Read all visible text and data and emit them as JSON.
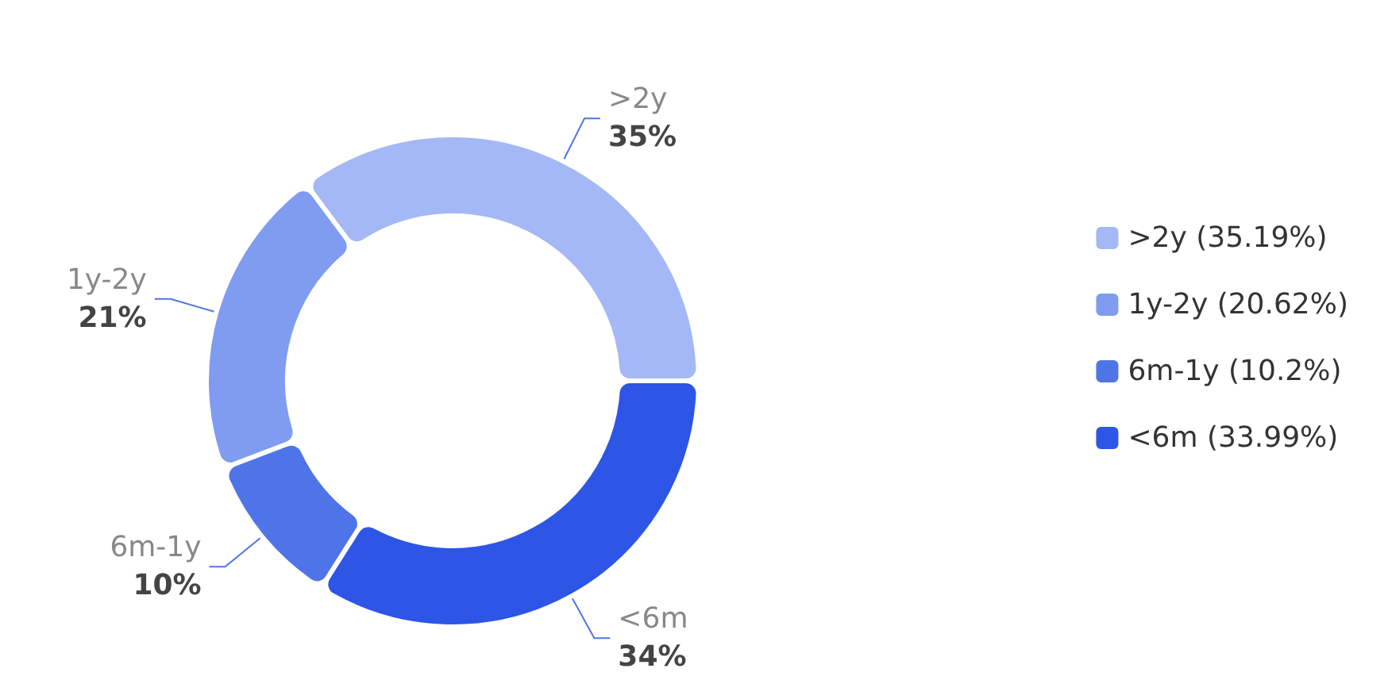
{
  "chart_data": {
    "type": "donut",
    "categories": [
      ">2y (35.19%)",
      "1y-2y (20.62%)",
      "6m-1y (10.2%)",
      "<6m (33.99%)"
    ],
    "values": [
      35.19,
      20.62,
      10.2,
      33.99
    ],
    "colors": [
      "#a3b8f5",
      "#7f9cf0",
      "#4f74e8",
      "#2d55e6"
    ],
    "value_labels": [
      ">2y\n35%",
      "1y-2y\n21%",
      "6m-1y\n10%",
      "<6m\n34%"
    ],
    "legend": "right"
  }
}
